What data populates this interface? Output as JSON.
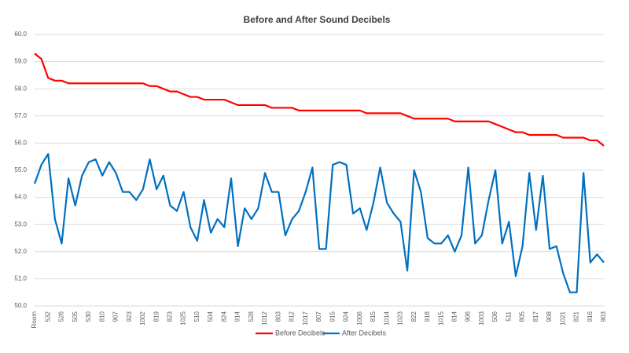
{
  "chart_data": {
    "type": "line",
    "title": "Before and After Sound Decibels",
    "categories": [
      "Room",
      null,
      "532",
      null,
      "526",
      null,
      "505",
      null,
      "530",
      null,
      "810",
      null,
      "907",
      null,
      "923",
      null,
      "1002",
      null,
      "819",
      null,
      "823",
      null,
      "1025",
      null,
      "510",
      null,
      "504",
      null,
      "824",
      null,
      "914",
      null,
      "528",
      null,
      "1012",
      null,
      "803",
      null,
      "812",
      null,
      "1017",
      null,
      "807",
      null,
      "915",
      null,
      "924",
      null,
      "1006",
      null,
      "815",
      null,
      "1014",
      null,
      "1023",
      null,
      "822",
      null,
      "918",
      null,
      "1015",
      null,
      "814",
      null,
      "906",
      null,
      "1003",
      null,
      "506",
      null,
      "511",
      null,
      "805",
      null,
      "817",
      null,
      "908",
      null,
      "1021",
      null,
      "821",
      null,
      "916",
      null,
      "903"
    ],
    "series": [
      {
        "name": "Before Decibels",
        "color": "#ff0000",
        "values": [
          59.3,
          59.1,
          58.4,
          58.3,
          58.3,
          58.2,
          58.2,
          58.2,
          58.2,
          58.2,
          58.2,
          58.2,
          58.2,
          58.2,
          58.2,
          58.2,
          58.2,
          58.1,
          58.1,
          58.0,
          57.9,
          57.9,
          57.8,
          57.7,
          57.7,
          57.6,
          57.6,
          57.6,
          57.6,
          57.5,
          57.4,
          57.4,
          57.4,
          57.4,
          57.4,
          57.3,
          57.3,
          57.3,
          57.3,
          57.2,
          57.2,
          57.2,
          57.2,
          57.2,
          57.2,
          57.2,
          57.2,
          57.2,
          57.2,
          57.1,
          57.1,
          57.1,
          57.1,
          57.1,
          57.1,
          57.0,
          56.9,
          56.9,
          56.9,
          56.9,
          56.9,
          56.9,
          56.8,
          56.8,
          56.8,
          56.8,
          56.8,
          56.8,
          56.7,
          56.6,
          56.5,
          56.4,
          56.4,
          56.3,
          56.3,
          56.3,
          56.3,
          56.3,
          56.2,
          56.2,
          56.2,
          56.2,
          56.1,
          56.1,
          55.9
        ]
      },
      {
        "name": "After Decibels",
        "color": "#0070c0",
        "values": [
          54.5,
          55.2,
          55.6,
          53.2,
          52.3,
          54.7,
          53.7,
          54.8,
          55.3,
          55.4,
          54.8,
          55.3,
          54.9,
          54.2,
          54.2,
          53.9,
          54.3,
          55.4,
          54.3,
          54.8,
          53.7,
          53.5,
          54.2,
          52.9,
          52.4,
          53.9,
          52.7,
          53.2,
          52.9,
          54.7,
          52.2,
          53.6,
          53.2,
          53.6,
          54.9,
          54.2,
          54.2,
          52.6,
          53.2,
          53.5,
          54.2,
          55.1,
          52.1,
          52.1,
          55.2,
          55.3,
          55.2,
          53.4,
          53.6,
          52.8,
          53.8,
          55.1,
          53.8,
          53.4,
          53.1,
          51.3,
          55.0,
          54.2,
          52.5,
          52.3,
          52.3,
          52.6,
          52.0,
          52.6,
          55.1,
          52.3,
          52.6,
          53.9,
          55.0,
          52.3,
          53.1,
          51.1,
          52.2,
          54.9,
          52.8,
          54.8,
          52.1,
          52.2,
          51.2,
          50.5,
          50.5,
          54.9,
          51.6,
          51.9,
          51.6
        ]
      }
    ],
    "ylim": [
      50,
      60
    ],
    "yticks": [
      {
        "value": 50,
        "label": "50.0"
      },
      {
        "value": 51,
        "label": "51.0"
      },
      {
        "value": 52,
        "label": "52.0"
      },
      {
        "value": 53,
        "label": "53.0"
      },
      {
        "value": 54,
        "label": "54.0"
      },
      {
        "value": 55,
        "label": "55.0"
      },
      {
        "value": 56,
        "label": "56.0"
      },
      {
        "value": 57,
        "label": "57.0"
      },
      {
        "value": 58,
        "label": "58.0"
      },
      {
        "value": 59,
        "label": "59.0"
      },
      {
        "value": 60,
        "label": "60.0"
      }
    ],
    "grid": true,
    "legend": "bottom"
  }
}
